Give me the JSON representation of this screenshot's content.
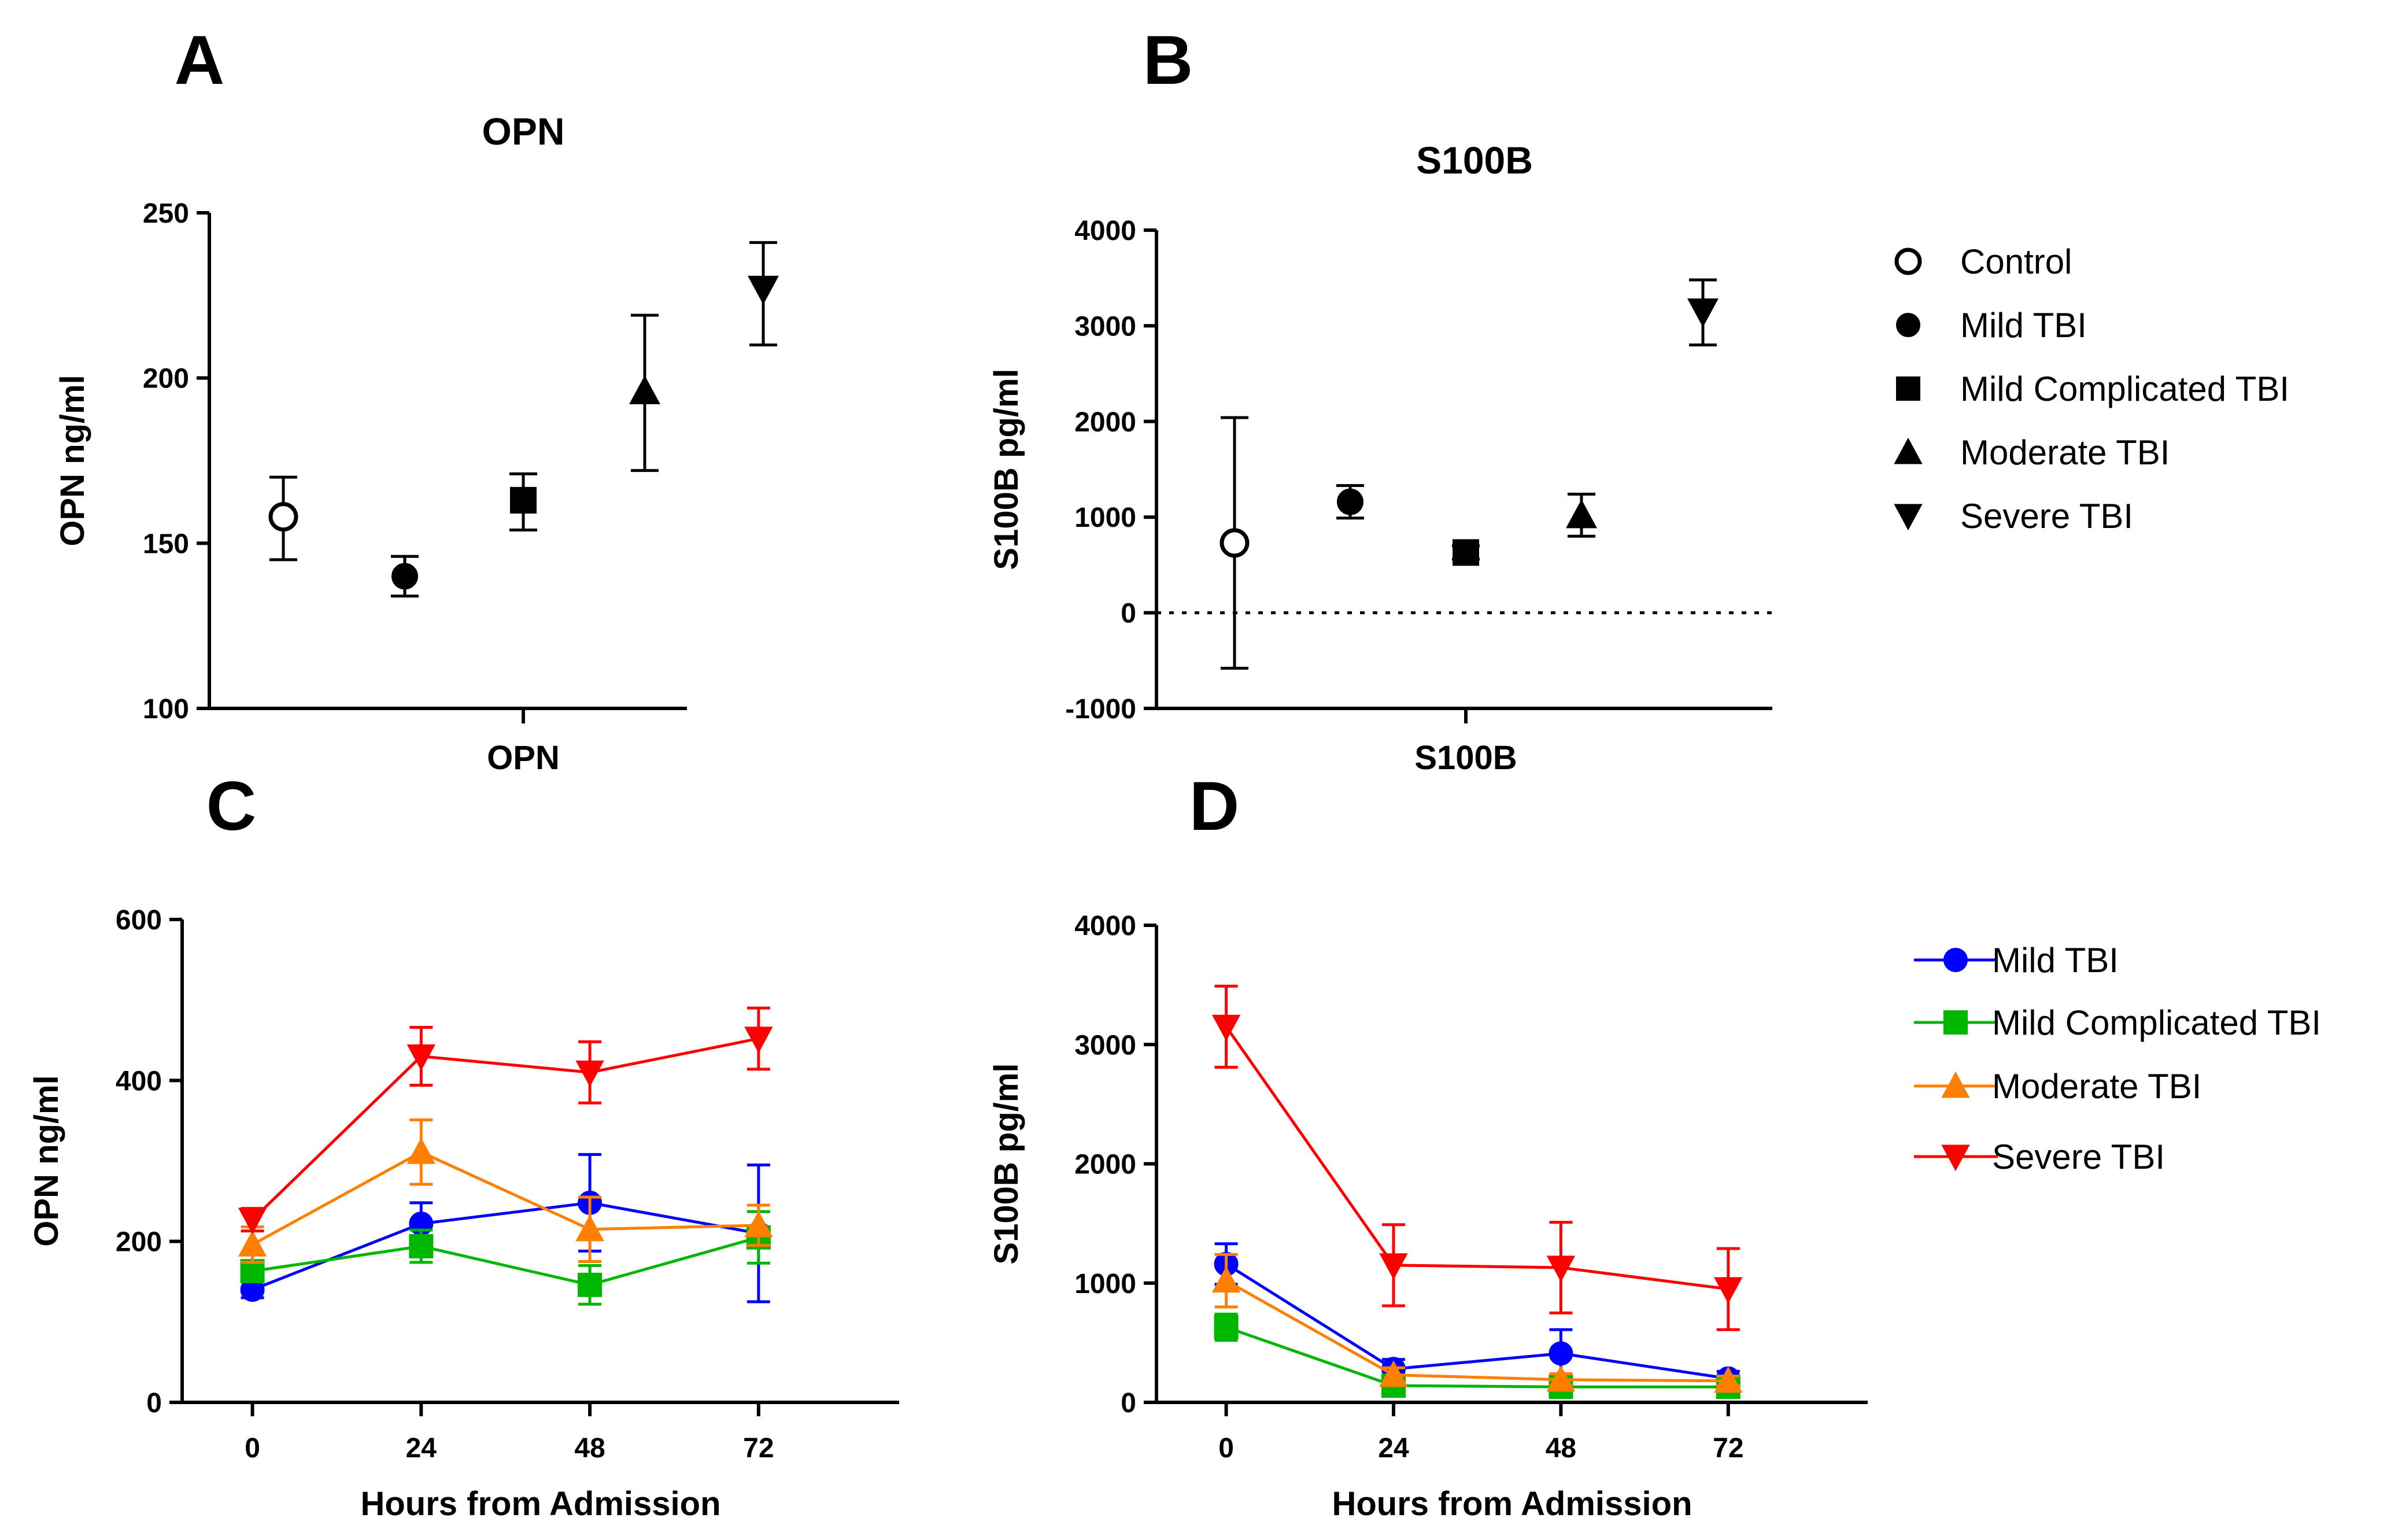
{
  "chart_data": [
    {
      "panel": "A",
      "type": "scatter",
      "title": "OPN",
      "xlabel": "OPN",
      "ylabel": "OPN ng/ml",
      "ylim": [
        100,
        250
      ],
      "yticks": [
        100,
        150,
        200,
        250
      ],
      "series": [
        {
          "name": "Control",
          "marker": "circle-open",
          "value": 158,
          "err_low": 145,
          "err_high": 170
        },
        {
          "name": "Mild TBI",
          "marker": "circle",
          "value": 140,
          "err_low": 134,
          "err_high": 146
        },
        {
          "name": "Mild Complicated TBI",
          "marker": "square",
          "value": 163,
          "err_low": 154,
          "err_high": 171
        },
        {
          "name": "Moderate TBI",
          "marker": "triangle-up",
          "value": 196,
          "err_low": 172,
          "err_high": 219
        },
        {
          "name": "Severe TBI",
          "marker": "triangle-down",
          "value": 227,
          "err_low": 210,
          "err_high": 241
        }
      ]
    },
    {
      "panel": "B",
      "type": "scatter",
      "title": "S100B",
      "xlabel": "S100B",
      "ylabel": "S100B pg/ml",
      "ylim": [
        -1000,
        4000
      ],
      "yticks": [
        -1000,
        0,
        1000,
        2000,
        3000,
        4000
      ],
      "zero_line": true,
      "series": [
        {
          "name": "Control",
          "marker": "circle-open",
          "value": 730,
          "err_low": -580,
          "err_high": 2040
        },
        {
          "name": "Mild TBI",
          "marker": "circle",
          "value": 1160,
          "err_low": 990,
          "err_high": 1330
        },
        {
          "name": "Mild Complicated TBI",
          "marker": "square",
          "value": 630,
          "err_low": 560,
          "err_high": 700
        },
        {
          "name": "Moderate TBI",
          "marker": "triangle-up",
          "value": 1020,
          "err_low": 800,
          "err_high": 1240
        },
        {
          "name": "Severe TBI",
          "marker": "triangle-down",
          "value": 3150,
          "err_low": 2800,
          "err_high": 3480
        }
      ]
    },
    {
      "panel": "C",
      "type": "line",
      "xlabel": "Hours from Admission",
      "ylabel": "OPN ng/ml",
      "x": [
        0,
        24,
        48,
        72
      ],
      "xlim": [
        -10,
        92
      ],
      "ylim": [
        0,
        600
      ],
      "yticks": [
        0,
        200,
        400,
        600
      ],
      "series": [
        {
          "name": "Mild TBI",
          "color": "#0000ff",
          "marker": "circle",
          "values": [
            140,
            222,
            248,
            210
          ],
          "err": [
            10,
            26,
            60,
            85
          ]
        },
        {
          "name": "Mild Complicated TBI",
          "color": "#00b700",
          "marker": "square",
          "values": [
            163,
            194,
            146,
            205
          ],
          "err": [
            10,
            20,
            24,
            32
          ]
        },
        {
          "name": "Moderate TBI",
          "color": "#ff8000",
          "marker": "triangle-up",
          "values": [
            196,
            311,
            215,
            220
          ],
          "err": [
            22,
            40,
            40,
            25
          ]
        },
        {
          "name": "Severe TBI",
          "color": "#ff0000",
          "marker": "triangle-down",
          "values": [
            227,
            430,
            410,
            452
          ],
          "err": [
            14,
            36,
            38,
            38
          ]
        }
      ]
    },
    {
      "panel": "D",
      "type": "line",
      "xlabel": "Hours from Admission",
      "ylabel": "S100B pg/ml",
      "x": [
        0,
        24,
        48,
        72
      ],
      "xlim": [
        -10,
        92
      ],
      "ylim": [
        0,
        4000
      ],
      "yticks": [
        0,
        1000,
        2000,
        3000,
        4000
      ],
      "series": [
        {
          "name": "Mild TBI",
          "color": "#0000ff",
          "marker": "circle",
          "values": [
            1160,
            280,
            410,
            200
          ],
          "err": [
            170,
            80,
            200,
            60
          ]
        },
        {
          "name": "Mild Complicated TBI",
          "color": "#00b700",
          "marker": "square",
          "values": [
            630,
            140,
            130,
            130
          ],
          "err": [
            110,
            30,
            40,
            30
          ]
        },
        {
          "name": "Moderate TBI",
          "color": "#ff8000",
          "marker": "triangle-up",
          "values": [
            1020,
            230,
            190,
            180
          ],
          "err": [
            220,
            60,
            50,
            40
          ]
        },
        {
          "name": "Severe TBI",
          "color": "#ff0000",
          "marker": "triangle-down",
          "values": [
            3150,
            1150,
            1130,
            950
          ],
          "err": [
            340,
            340,
            380,
            340
          ]
        }
      ]
    }
  ],
  "legend_top": {
    "items": [
      {
        "label": "Control",
        "marker": "circle-open"
      },
      {
        "label": "Mild TBI",
        "marker": "circle"
      },
      {
        "label": "Mild Complicated TBI",
        "marker": "square"
      },
      {
        "label": "Moderate TBI",
        "marker": "triangle-up"
      },
      {
        "label": "Severe TBI",
        "marker": "triangle-down"
      }
    ]
  },
  "legend_bottom": {
    "items": [
      {
        "label": "Mild TBI",
        "color": "#0000ff",
        "marker": "circle"
      },
      {
        "label": "Mild Complicated TBI",
        "color": "#00b700",
        "marker": "square"
      },
      {
        "label": "Moderate TBI",
        "color": "#ff8000",
        "marker": "triangle-up"
      },
      {
        "label": "Severe TBI",
        "color": "#ff0000",
        "marker": "triangle-down"
      }
    ]
  }
}
